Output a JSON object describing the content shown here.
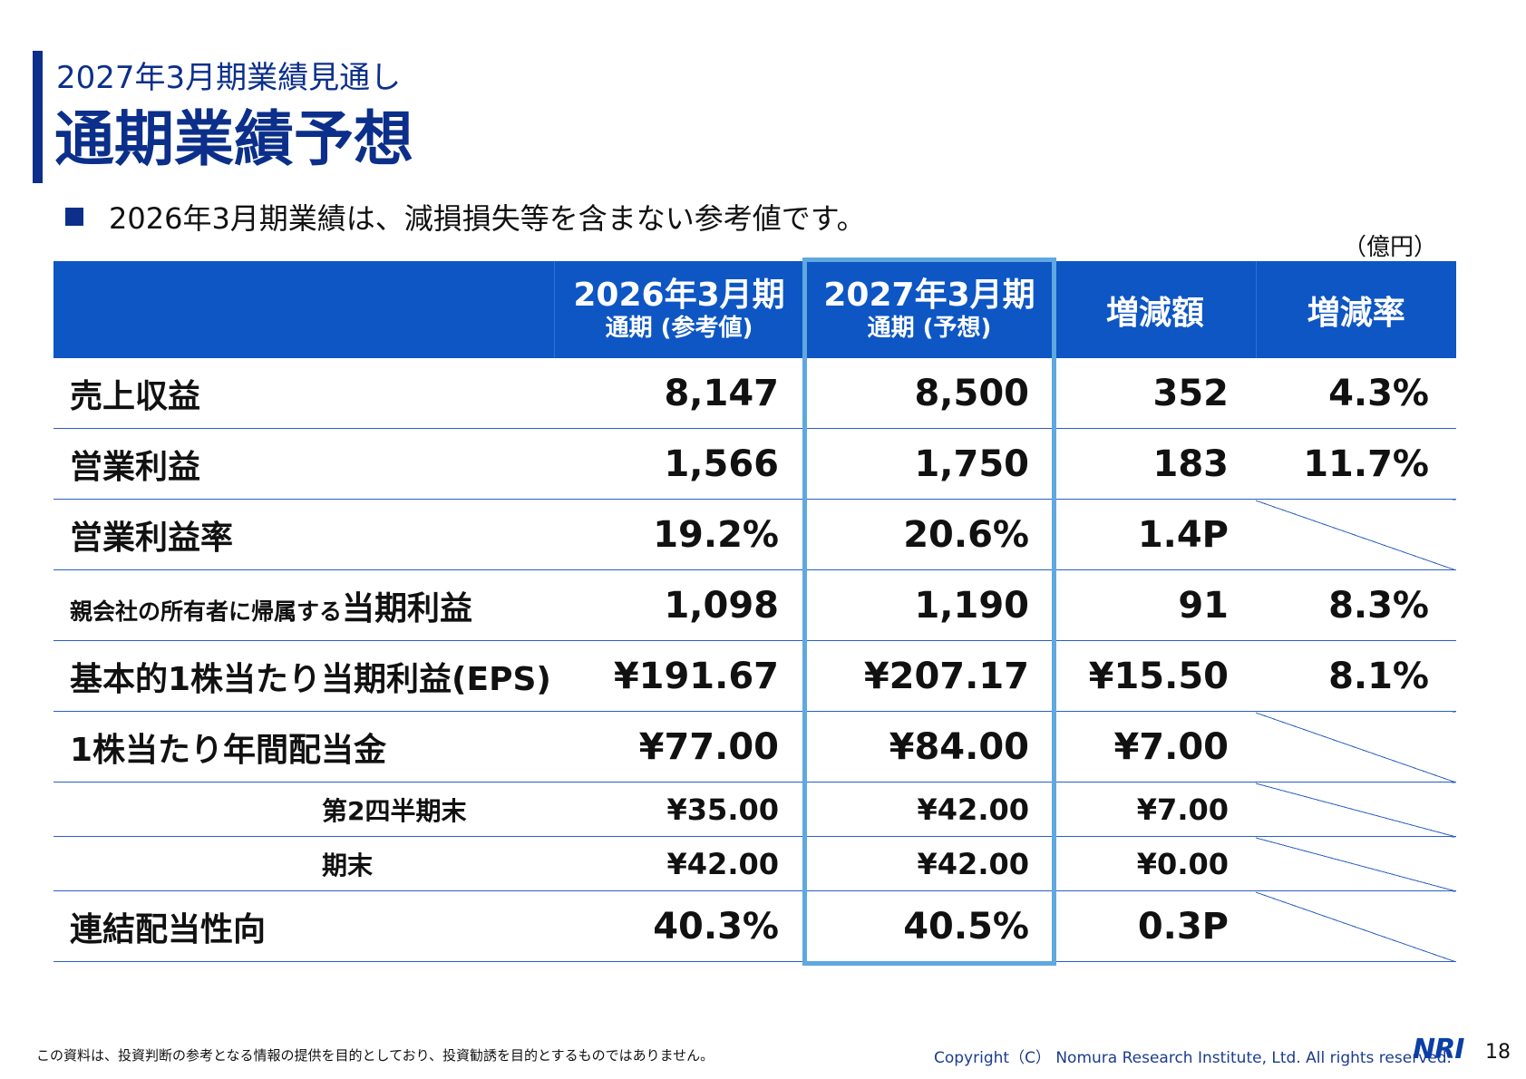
{
  "header": {
    "subtitle": "2027年3月期業績見通し",
    "title": "通期業績予想",
    "note": "2026年3月期業績は、減損損失等を含まない参考値です。",
    "unit": "（億円）"
  },
  "table": {
    "columns": [
      {
        "main": "",
        "sub": ""
      },
      {
        "main": "2026年3月期",
        "sub": "通期 (参考値)"
      },
      {
        "main": "2027年3月期",
        "sub": "通期 (予想)"
      },
      {
        "main": "増減額",
        "sub": ""
      },
      {
        "main": "増減率",
        "sub": ""
      }
    ],
    "rows": [
      {
        "label": "売上収益",
        "fy26": "8,147",
        "fy27": "8,500",
        "diff": "352",
        "rate": "4.3%"
      },
      {
        "label": "営業利益",
        "fy26": "1,566",
        "fy27": "1,750",
        "diff": "183",
        "rate": "11.7%"
      },
      {
        "label": "営業利益率",
        "fy26": "19.2%",
        "fy27": "20.6%",
        "diff": "1.4P",
        "rate": ""
      },
      {
        "label_small": "親会社の所有者に帰属する",
        "label": "当期利益",
        "fy26": "1,098",
        "fy27": "1,190",
        "diff": "91",
        "rate": "8.3%"
      },
      {
        "label": "基本的1株当たり当期利益(EPS)",
        "fy26": "¥191.67",
        "fy27": "¥207.17",
        "diff": "¥15.50",
        "rate": "8.1%"
      },
      {
        "label": "1株当たり年間配当金",
        "fy26": "¥77.00",
        "fy27": "¥84.00",
        "diff": "¥7.00",
        "rate": ""
      },
      {
        "label": "第2四半期末",
        "fy26": "¥35.00",
        "fy27": "¥42.00",
        "diff": "¥7.00",
        "rate": ""
      },
      {
        "label": "期末",
        "fy26": "¥42.00",
        "fy27": "¥42.00",
        "diff": "¥0.00",
        "rate": ""
      },
      {
        "label": "連結配当性向",
        "fy26": "40.3%",
        "fy27": "40.5%",
        "diff": "0.3P",
        "rate": ""
      }
    ]
  },
  "footer": {
    "disclaimer": "この資料は、投資判断の参考となる情報の提供を目的としており、投資勧誘を目的とするものではありません。",
    "copyright": "Copyright（C） Nomura Research Institute, Ltd. All rights reserved.",
    "logo": "NRI",
    "page": "18"
  },
  "colors": {
    "navy": "#0b2f8a",
    "header_blue": "#0d56c4",
    "highlight": "#5fa8e0",
    "rule": "#2a5fc2"
  }
}
